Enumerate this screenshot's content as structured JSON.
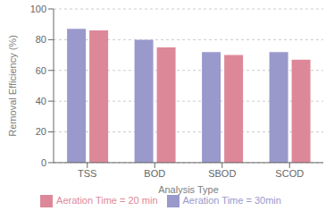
{
  "chart_data": {
    "type": "bar",
    "categories": [
      "TSS",
      "BOD",
      "SBOD",
      "SCOD"
    ],
    "series": [
      {
        "name": "Aeration Time = 30min",
        "color": "#9999cc",
        "values": [
          87,
          80,
          72,
          72
        ]
      },
      {
        "name": "Aeration Time = 20 min",
        "color": "#dd8899",
        "values": [
          86,
          75,
          70,
          67
        ]
      }
    ],
    "xlabel": "Analysis Type",
    "ylabel": "Removal Efficiency (%)",
    "ylim": [
      0,
      100
    ],
    "yticks": [
      0,
      20,
      40,
      60,
      80,
      100
    ],
    "grid": true,
    "legend": "bottom"
  }
}
